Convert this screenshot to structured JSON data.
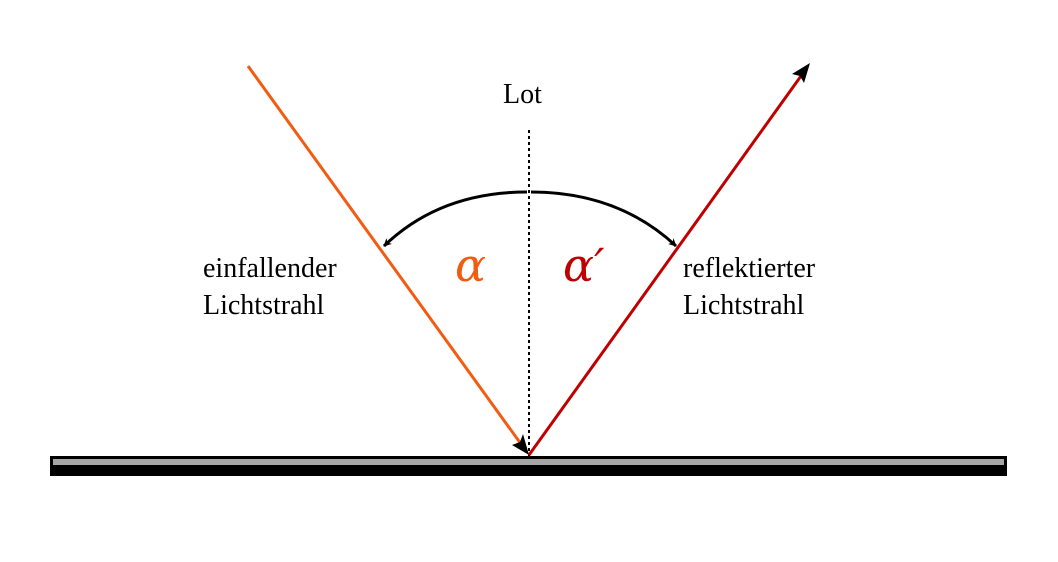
{
  "labels": {
    "normal": "Lot",
    "incident_line1": "einfallender",
    "incident_line2": "Lichtstrahl",
    "reflected_line1": "reflektierter",
    "reflected_line2": "Lichtstrahl",
    "angle_incident": "α",
    "angle_reflected": "α′"
  },
  "colors": {
    "incident_ray": "#f25c12",
    "reflected_ray": "#c00000",
    "mirror_top": "#a6a6a6",
    "mirror_body": "#000000",
    "normal_line": "#000000",
    "angle_arc": "#000000"
  }
}
